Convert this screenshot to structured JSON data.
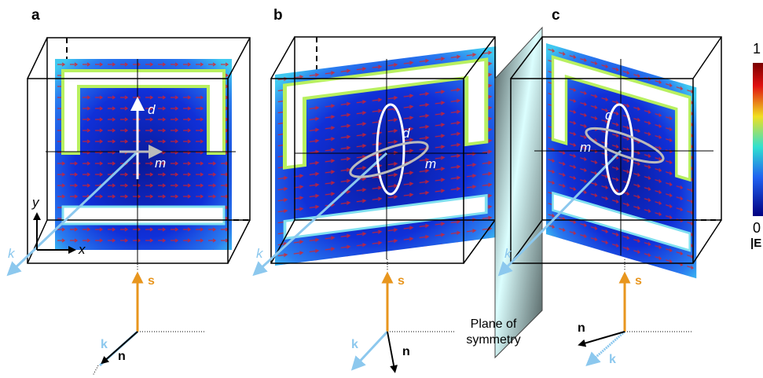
{
  "panels": [
    {
      "label": "a",
      "d": "d",
      "m": "m",
      "y_axis": "y",
      "x_axis": "x",
      "k": "k",
      "s_vector": "s",
      "k_vector": "k",
      "n_vector": "n"
    },
    {
      "label": "b",
      "d": "d",
      "m": "m",
      "k": "k",
      "s_vector": "s",
      "k_vector": "k",
      "n_vector": "n"
    },
    {
      "label": "c",
      "d": "d",
      "m": "m",
      "k": "k",
      "s_vector": "s",
      "k_vector": "k",
      "n_vector": "n"
    }
  ],
  "plane_label": [
    "Plane of",
    "symmetry"
  ],
  "colorbar": {
    "max": 1,
    "min": 0,
    "label": "|E"
  }
}
